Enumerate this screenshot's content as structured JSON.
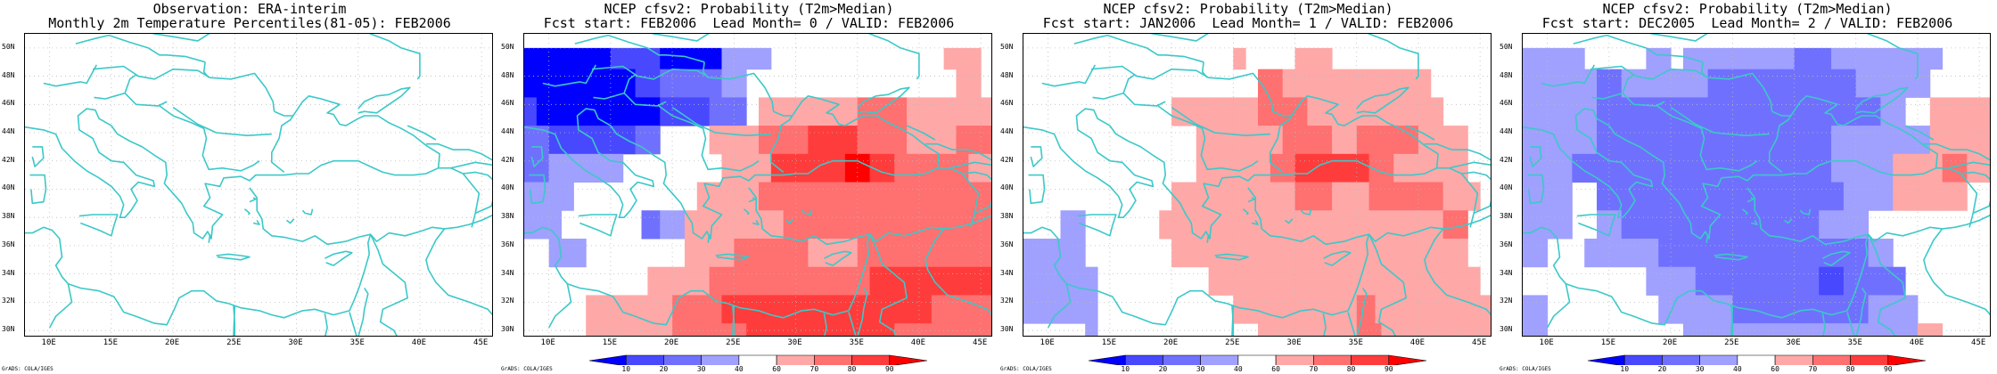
{
  "panels": [
    {
      "title1": "Observation: ERA-interim",
      "title2": "Monthly 2m Temperature Percentiles(81-05): FEB2006",
      "has_colorbar": false
    },
    {
      "title1": "NCEP cfsv2: Probability (T2m>Median)",
      "title2": "Fcst start: FEB2006  Lead Month= 0 / VALID: FEB2006",
      "has_colorbar": true
    },
    {
      "title1": "NCEP cfsv2: Probability (T2m>Median)",
      "title2": "Fcst start: JAN2006  Lead Month= 1 / VALID: FEB2006",
      "has_colorbar": true
    },
    {
      "title1": "NCEP cfsv2: Probability (T2m>Median)",
      "title2": "Fcst start: DEC2005  Lead Month= 2 / VALID: FEB2006",
      "has_colorbar": true
    }
  ],
  "lat_labels": [
    "50N",
    "48N",
    "46N",
    "44N",
    "42N",
    "40N",
    "38N",
    "36N",
    "34N",
    "32N",
    "30N"
  ],
  "lon_labels": [
    "10E",
    "15E",
    "20E",
    "25E",
    "30E",
    "35E",
    "40E",
    "45E"
  ],
  "credit": "GrADS: COLA/IGES",
  "colorbar_labels": [
    "10",
    "20",
    "30",
    "40",
    "60",
    "70",
    "80",
    "90"
  ],
  "colors": {
    "coast": "#3cc8c8",
    "blue_levels": [
      "#0000ff",
      "#4848ff",
      "#7070ff",
      "#a0a0ff"
    ],
    "red_levels": [
      "#ffa8a8",
      "#ff7070",
      "#ff3c3c",
      "#ff0000"
    ]
  }
}
